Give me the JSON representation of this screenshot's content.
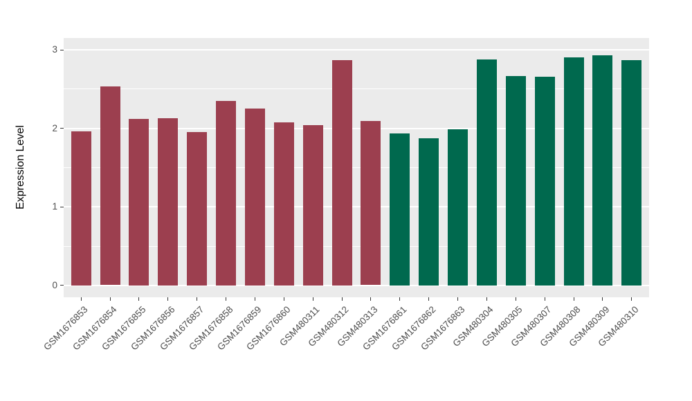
{
  "chart_data": {
    "type": "bar",
    "title": "",
    "xlabel": "",
    "ylabel": "Expression Level",
    "ylim": [
      0,
      3
    ],
    "y_ticks": [
      0,
      1,
      2,
      3
    ],
    "y_tick_labels": [
      "0",
      "1",
      "2",
      "3"
    ],
    "y_minor_ticks": [
      0.5,
      1.5,
      2.5
    ],
    "grid": true,
    "legend_position": "none",
    "panel_background": "#EBEBEB",
    "gridline_color": "#ffffff",
    "axis_text_color": "#4d4d4d",
    "colors": {
      "red": "#9C3F4F",
      "green": "#00694E"
    },
    "categories": [
      "GSM1676853",
      "GSM1676854",
      "GSM1676855",
      "GSM1676856",
      "GSM1676857",
      "GSM1676858",
      "GSM1676859",
      "GSM1676860",
      "GSM480311",
      "GSM480312",
      "GSM480313",
      "GSM1676861",
      "GSM1676862",
      "GSM1676863",
      "GSM480304",
      "GSM480305",
      "GSM480307",
      "GSM480308",
      "GSM480309",
      "GSM480310"
    ],
    "values": [
      1.96,
      2.53,
      2.12,
      2.13,
      1.95,
      2.35,
      2.25,
      2.08,
      2.04,
      2.87,
      2.09,
      1.94,
      1.87,
      1.99,
      2.88,
      2.67,
      2.66,
      2.9,
      2.93,
      2.87
    ],
    "bar_groups": [
      "red",
      "red",
      "red",
      "red",
      "red",
      "red",
      "red",
      "red",
      "red",
      "red",
      "red",
      "green",
      "green",
      "green",
      "green",
      "green",
      "green",
      "green",
      "green",
      "green"
    ]
  }
}
